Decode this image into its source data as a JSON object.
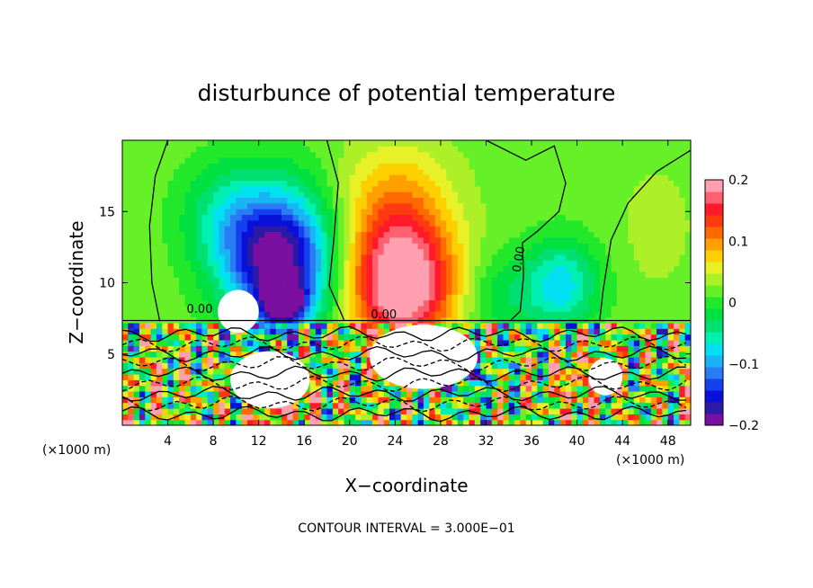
{
  "chart_data": {
    "type": "heatmap",
    "title": "disturbunce of potential temperature",
    "xlabel": "X−coordinate",
    "ylabel": "Z−coordinate",
    "x_unit": "(×1000 m)",
    "y_unit": "(×1000 m)",
    "xlim": [
      0,
      50
    ],
    "ylim": [
      0,
      20
    ],
    "x_ticks": [
      4,
      8,
      12,
      16,
      20,
      24,
      28,
      32,
      36,
      40,
      44,
      48
    ],
    "y_ticks": [
      5,
      10,
      15
    ],
    "colorbar": {
      "range": [
        -0.2,
        0.2
      ],
      "ticks": [
        {
          "value": 0.2,
          "label": "0.2"
        },
        {
          "value": 0.1,
          "label": "0.1"
        },
        {
          "value": 0,
          "label": "0"
        },
        {
          "value": -0.1,
          "label": "−0.1"
        },
        {
          "value": -0.2,
          "label": "−0.2"
        }
      ],
      "colors": [
        "#7a0fa0",
        "#2a1aa8",
        "#0a10d8",
        "#1440f0",
        "#2a7cf5",
        "#1ab4f5",
        "#00e0f0",
        "#00f0b4",
        "#00e070",
        "#00e040",
        "#22e82a",
        "#66f028",
        "#aef028",
        "#e8f028",
        "#ffd000",
        "#ffa000",
        "#ff6a00",
        "#ff3a10",
        "#ff1a2a",
        "#ff6070",
        "#ffa0b0"
      ]
    },
    "contour_labels": [
      {
        "x": 6.8,
        "z": 7.9,
        "text": "0.00"
      },
      {
        "x": 23,
        "z": 7.5,
        "text": "0.00"
      },
      {
        "x": 35.2,
        "z": 11.6,
        "text": "0.00"
      }
    ],
    "annotation": "CONTOUR INTERVAL = 3.000E−01",
    "background_value": 0.02,
    "fields": [
      {
        "cx": 13.8,
        "cz": 11.5,
        "sx": 4.6,
        "sz": 5.0,
        "amp": -0.22
      },
      {
        "cx": 9.0,
        "cz": 14.5,
        "sx": 4.0,
        "sz": 4.0,
        "amp": -0.06
      },
      {
        "cx": 14.2,
        "cz": 8.6,
        "sx": 1.8,
        "sz": 1.4,
        "amp": -0.16
      },
      {
        "cx": 24.6,
        "cz": 10.0,
        "sx": 4.6,
        "sz": 4.6,
        "amp": 0.21
      },
      {
        "cx": 24.0,
        "cz": 16.0,
        "sx": 4.8,
        "sz": 4.0,
        "amp": 0.06
      },
      {
        "cx": 38.5,
        "cz": 9.8,
        "sx": 3.4,
        "sz": 3.2,
        "amp": -0.1
      },
      {
        "cx": 33.0,
        "cz": 9.0,
        "sx": 3.0,
        "sz": 3.0,
        "amp": -0.04
      },
      {
        "cx": 47.0,
        "cz": 14.0,
        "sx": 3.0,
        "sz": 4.0,
        "amp": 0.02
      },
      {
        "cx": 29.0,
        "cz": 3.6,
        "sx": 3.4,
        "sz": 1.2,
        "amp": -0.18
      },
      {
        "cx": 14.0,
        "cz": 1.6,
        "sx": 3.0,
        "sz": 1.8,
        "amp": 0.14
      },
      {
        "cx": 40.0,
        "cz": 3.2,
        "sx": 2.6,
        "sz": 2.4,
        "amp": 0.09
      },
      {
        "cx": 3.0,
        "cz": 2.8,
        "sx": 2.8,
        "sz": 2.4,
        "amp": 0.05
      }
    ],
    "lower_layer_top": 7.3,
    "white_patches": [
      {
        "x": 10.2,
        "z": 8.0,
        "w": 3.6,
        "h": 3.0,
        "t": "white-cap",
        "v": "above"
      },
      {
        "x": 26.5,
        "z": 4.8,
        "w": 9.5,
        "h": 4.5,
        "t": "white",
        "v": "below"
      },
      {
        "x": 13.0,
        "z": 3.2,
        "w": 7.0,
        "h": 4.0,
        "t": "white",
        "v": "below"
      },
      {
        "x": 42.5,
        "z": 3.4,
        "w": 3.0,
        "h": 2.6,
        "t": "white",
        "v": "below"
      }
    ]
  }
}
